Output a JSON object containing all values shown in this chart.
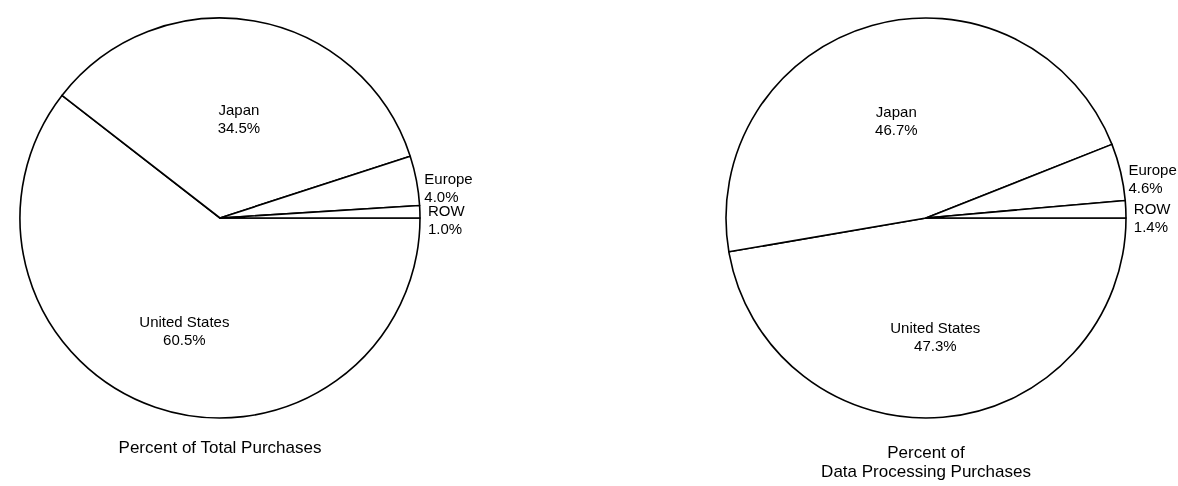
{
  "chart_data": [
    {
      "type": "pie",
      "title": "Percent of Total Purchases",
      "categories": [
        "United States",
        "Japan",
        "Europe",
        "ROW"
      ],
      "values": [
        60.5,
        34.5,
        4.0,
        1.0
      ],
      "value_labels": [
        "60.5%",
        "34.5%",
        "4.0%",
        "1.0%"
      ],
      "colors": [
        "#ffffff",
        "#ffffff",
        "#ffffff",
        "#ffffff"
      ],
      "legend": false
    },
    {
      "type": "pie",
      "title": "Percent of\nData Processing Purchases",
      "categories": [
        "United States",
        "Japan",
        "Europe",
        "ROW"
      ],
      "values": [
        47.3,
        46.7,
        4.6,
        1.4
      ],
      "value_labels": [
        "47.3%",
        "46.7%",
        "4.6%",
        "1.4%"
      ],
      "colors": [
        "#ffffff",
        "#ffffff",
        "#ffffff",
        "#ffffff"
      ],
      "legend": false
    }
  ]
}
